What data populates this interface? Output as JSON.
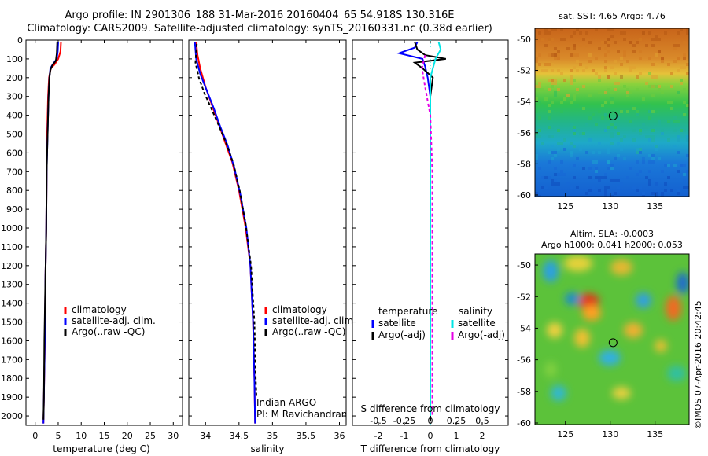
{
  "title_line1": "Argo profile: IN 2901306_188 31-Mar-2016 20160404_65 54.918S 130.316E",
  "title_line2": "Climatology: CARS2009. Satellite-adjusted climatology: synTS_20160331.nc (0.38d earlier)",
  "sst_title": "sat. SST: 4.65 Argo: 4.76",
  "sla_title_1": "Altim. SLA: -0.0003",
  "sla_title_2": "Argo h1000: 0.041 h2000: 0.053",
  "credit": "©IMOS 07-Apr-2016 20:42:45",
  "annot_1": "Indian ARGO",
  "annot_2": "PI: M Ravichandran",
  "colors": {
    "climatology": "#ff0000",
    "satellite": "#0000ff",
    "argo": "#000000",
    "sat_salinity": "#00e5e5",
    "argo_salinity": "#e600e6"
  },
  "chart_data": [
    {
      "type": "line",
      "xlabel": "temperature (deg C)",
      "ylabel": "",
      "xlim": [
        -2,
        32
      ],
      "ylim": [
        2050,
        0
      ],
      "y_reversed": true,
      "xticks": [
        0,
        5,
        10,
        15,
        20,
        25,
        30
      ],
      "yticks": [
        0,
        100,
        200,
        300,
        400,
        500,
        600,
        700,
        800,
        900,
        1000,
        1100,
        1200,
        1300,
        1400,
        1500,
        1600,
        1700,
        1800,
        1900,
        2000
      ],
      "legend": [
        {
          "name": "climatology",
          "color": "#ff0000"
        },
        {
          "name": "satellite-adj. clim.",
          "color": "#0000ff"
        },
        {
          "name": "Argo(..raw -QC)",
          "color": "#000000"
        }
      ],
      "legend_position": "center-right",
      "series": [
        {
          "key": "climatology",
          "color": "#ff0000",
          "dashed": false,
          "points": [
            [
              5.6,
              10
            ],
            [
              5.5,
              60
            ],
            [
              5.0,
              100
            ],
            [
              4.2,
              130
            ],
            [
              3.4,
              150
            ],
            [
              3.0,
              200
            ],
            [
              2.8,
              300
            ],
            [
              2.6,
              500
            ],
            [
              2.5,
              700
            ],
            [
              2.4,
              1000
            ],
            [
              2.2,
              1300
            ],
            [
              2.1,
              1600
            ],
            [
              1.9,
              1900
            ],
            [
              1.8,
              2040
            ]
          ]
        },
        {
          "key": "satellite",
          "color": "#0000ff",
          "dashed": false,
          "points": [
            [
              5.0,
              10
            ],
            [
              4.9,
              60
            ],
            [
              4.7,
              100
            ],
            [
              3.8,
              130
            ],
            [
              3.3,
              150
            ],
            [
              3.1,
              200
            ],
            [
              2.9,
              300
            ],
            [
              2.7,
              500
            ],
            [
              2.5,
              700
            ],
            [
              2.4,
              1000
            ],
            [
              2.2,
              1300
            ],
            [
              2.1,
              1600
            ],
            [
              1.9,
              1900
            ],
            [
              1.8,
              2040
            ]
          ]
        },
        {
          "key": "argo",
          "color": "#000000",
          "dashed": false,
          "points": [
            [
              4.8,
              10
            ],
            [
              4.7,
              70
            ],
            [
              4.5,
              110
            ],
            [
              3.7,
              135
            ],
            [
              3.3,
              160
            ],
            [
              3.1,
              200
            ],
            [
              2.9,
              300
            ],
            [
              2.7,
              500
            ],
            [
              2.5,
              700
            ],
            [
              2.4,
              1000
            ],
            [
              2.2,
              1300
            ],
            [
              2.0,
              1600
            ],
            [
              1.9,
              1900
            ],
            [
              1.8,
              2020
            ]
          ]
        }
      ]
    },
    {
      "type": "line",
      "xlabel": "salinity",
      "ylabel": "",
      "xlim": [
        33.75,
        36.1
      ],
      "ylim": [
        2050,
        0
      ],
      "y_reversed": true,
      "xticks": [
        34,
        34.5,
        35,
        35.5,
        36
      ],
      "legend": [
        {
          "name": "climatology",
          "color": "#ff0000"
        },
        {
          "name": "satellite-adj. clim.",
          "color": "#0000ff"
        },
        {
          "name": "Argo(..raw -QC)",
          "color": "#000000"
        }
      ],
      "legend_position": "center-right",
      "series": [
        {
          "key": "climatology",
          "color": "#ff0000",
          "dashed": false,
          "points": [
            [
              33.86,
              10
            ],
            [
              33.88,
              80
            ],
            [
              33.92,
              150
            ],
            [
              34.0,
              250
            ],
            [
              34.1,
              350
            ],
            [
              34.2,
              450
            ],
            [
              34.3,
              550
            ],
            [
              34.4,
              650
            ],
            [
              34.5,
              800
            ],
            [
              34.6,
              1000
            ],
            [
              34.67,
              1200
            ],
            [
              34.71,
              1500
            ],
            [
              34.73,
              1800
            ],
            [
              34.74,
              2040
            ]
          ]
        },
        {
          "key": "satellite",
          "color": "#0000ff",
          "dashed": false,
          "points": [
            [
              33.84,
              10
            ],
            [
              33.86,
              100
            ],
            [
              33.92,
              180
            ],
            [
              34.02,
              270
            ],
            [
              34.12,
              360
            ],
            [
              34.22,
              460
            ],
            [
              34.33,
              560
            ],
            [
              34.43,
              680
            ],
            [
              34.52,
              820
            ],
            [
              34.61,
              1000
            ],
            [
              34.67,
              1200
            ],
            [
              34.71,
              1500
            ],
            [
              34.73,
              1800
            ],
            [
              34.74,
              2040
            ]
          ]
        },
        {
          "key": "argo",
          "color": "#000000",
          "dashed": true,
          "points": [
            [
              33.87,
              20
            ],
            [
              33.85,
              120
            ],
            [
              33.9,
              200
            ],
            [
              33.98,
              280
            ],
            [
              34.08,
              360
            ],
            [
              34.18,
              440
            ],
            [
              34.3,
              540
            ],
            [
              34.42,
              660
            ],
            [
              34.51,
              800
            ],
            [
              34.6,
              980
            ],
            [
              34.68,
              1200
            ],
            [
              34.73,
              1500
            ],
            [
              34.75,
              1800
            ],
            [
              34.76,
              1900
            ]
          ]
        }
      ]
    },
    {
      "type": "line",
      "xlabel": "T difference from climatology",
      "x2label": "S difference from climatology",
      "xlim": [
        -3,
        3
      ],
      "x2lim": [
        -0.75,
        0.75
      ],
      "ylim": [
        2050,
        0
      ],
      "y_reversed": true,
      "xticks": [
        -2,
        -1,
        0,
        1,
        2
      ],
      "x2ticks": [
        -0.5,
        -0.25,
        0,
        0.25,
        0.5
      ],
      "legend_temperature_title": "temperature",
      "legend_salinity_title": "salinity",
      "legend": [
        {
          "name": "satellite",
          "color": "#0000ff",
          "group": "temperature"
        },
        {
          "name": "Argo(-adj)",
          "color": "#000000",
          "group": "temperature"
        },
        {
          "name": "satellite",
          "color": "#00e5e5",
          "group": "salinity"
        },
        {
          "name": "Argo(-adj)",
          "color": "#e600e6",
          "group": "salinity"
        }
      ],
      "legend_position": "center-right",
      "series": [
        {
          "key": "satellite_T",
          "axis": "T",
          "color": "#0000ff",
          "dashed": false,
          "points": [
            [
              -0.5,
              10
            ],
            [
              -0.6,
              40
            ],
            [
              -1.2,
              70
            ],
            [
              -0.3,
              100
            ],
            [
              -0.2,
              140
            ],
            [
              -0.1,
              200
            ],
            [
              0,
              300
            ],
            [
              0,
              1000
            ],
            [
              0,
              2000
            ]
          ]
        },
        {
          "key": "argo_T",
          "axis": "T",
          "color": "#000000",
          "dashed": false,
          "points": [
            [
              -0.6,
              10
            ],
            [
              -0.5,
              50
            ],
            [
              -0.2,
              80
            ],
            [
              0.6,
              100
            ],
            [
              -0.6,
              120
            ],
            [
              -0.3,
              150
            ],
            [
              0.1,
              200
            ],
            [
              0,
              300
            ],
            [
              0,
              1000
            ],
            [
              0,
              2030
            ]
          ]
        },
        {
          "key": "satellite_S",
          "axis": "S",
          "color": "#00e5e5",
          "dashed": false,
          "points": [
            [
              0.08,
              10
            ],
            [
              0.1,
              50
            ],
            [
              0.05,
              100
            ],
            [
              0.0,
              200
            ],
            [
              0.0,
              300
            ],
            [
              0.0,
              1000
            ],
            [
              0.0,
              2000
            ]
          ]
        },
        {
          "key": "argo_S",
          "axis": "S",
          "color": "#e600e6",
          "dashed": true,
          "points": [
            [
              -0.05,
              80
            ],
            [
              -0.08,
              150
            ],
            [
              -0.05,
              250
            ],
            [
              0.0,
              400
            ],
            [
              0.02,
              700
            ],
            [
              0.02,
              1000
            ],
            [
              0.02,
              1500
            ],
            [
              0.02,
              2000
            ]
          ]
        }
      ]
    },
    {
      "type": "heatmap",
      "title": "sat. SST: 4.65 Argo: 4.76",
      "xlim": [
        121.6,
        138.8
      ],
      "ylim": [
        -60.1,
        -49.3
      ],
      "xticks": [
        125,
        130,
        135
      ],
      "yticks": [
        -50,
        -52,
        -54,
        -56,
        -58,
        -60
      ],
      "marker": {
        "lon": 130.316,
        "lat": -54.918
      }
    },
    {
      "type": "heatmap",
      "title": "Altim. SLA: -0.0003",
      "subtitle": "Argo h1000: 0.041 h2000: 0.053",
      "xlim": [
        121.6,
        138.8
      ],
      "ylim": [
        -60.1,
        -49.3
      ],
      "xticks": [
        125,
        130,
        135
      ],
      "yticks": [
        -50,
        -52,
        -54,
        -56,
        -58,
        -60
      ],
      "marker": {
        "lon": 130.316,
        "lat": -54.918
      }
    }
  ]
}
